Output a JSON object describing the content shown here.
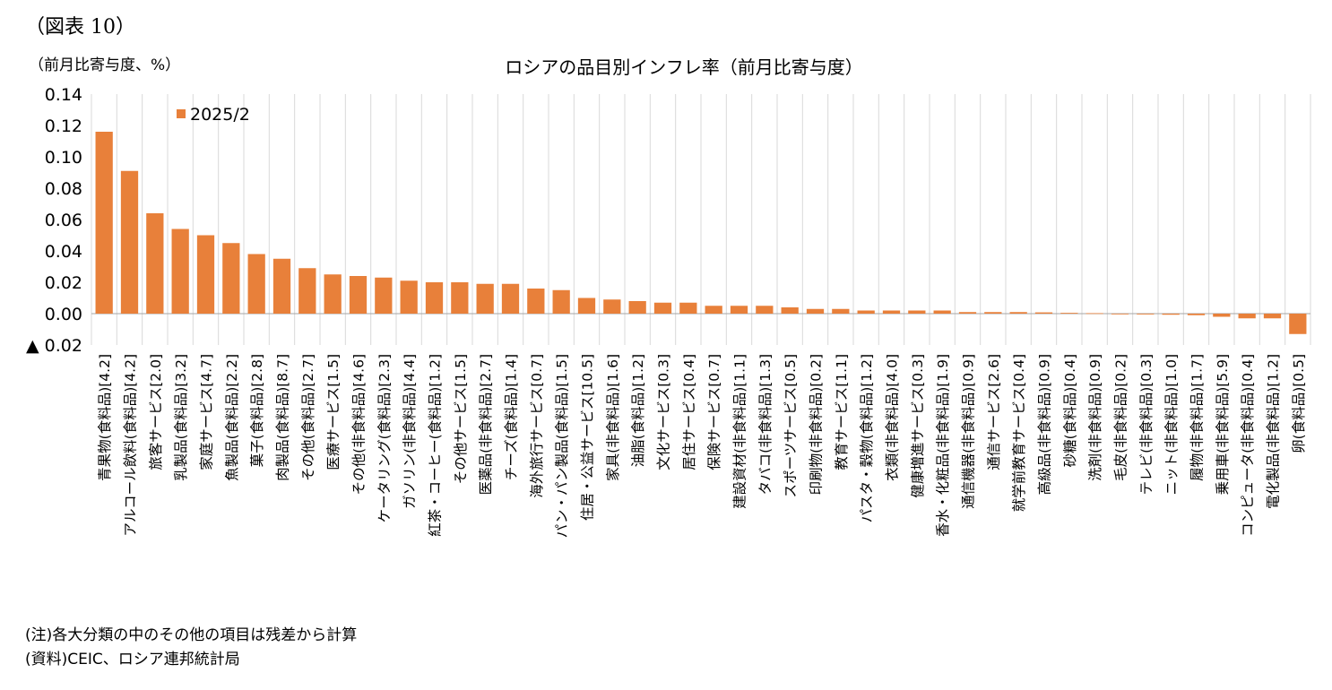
{
  "figure_label": "（図表 10）",
  "unit_label": "（前月比寄与度、%）",
  "notes": {
    "note": "(注)各大分類の中のその他の項目は残差から計算",
    "source": "(資料)CEIC、ロシア連邦統計局"
  },
  "colors": {
    "bar": "#E8803A",
    "grid": "#D9D9D9",
    "axis": "#A6A6A6"
  },
  "chart_data": {
    "type": "bar",
    "title": "ロシアの品目別インフレ率（前月比寄与度）",
    "ylabel": "（前月比寄与度、%）",
    "ylim": [
      -0.02,
      0.14
    ],
    "yticks": [
      {
        "value": 0.14,
        "label": "0.14"
      },
      {
        "value": 0.12,
        "label": "0.12"
      },
      {
        "value": 0.1,
        "label": "0.10"
      },
      {
        "value": 0.08,
        "label": "0.08"
      },
      {
        "value": 0.06,
        "label": "0.06"
      },
      {
        "value": 0.04,
        "label": "0.04"
      },
      {
        "value": 0.02,
        "label": "0.02"
      },
      {
        "value": 0.0,
        "label": "0.00"
      },
      {
        "value": -0.02,
        "label": "▲ 0.02"
      }
    ],
    "legend": "2025/2",
    "legend_position": "top-left",
    "grid": true,
    "categories": [
      "青果物(食料品)[4.2]",
      "アルコール飲料(食料品)[4.2]",
      "旅客サービス[2.0]",
      "乳製品(食料品)[3.2]",
      "家庭サービス[4.7]",
      "魚製品(食料品)[2.2]",
      "菓子(食料品)[2.8]",
      "肉製品(食料品)[8.7]",
      "その他(食料品)[2.7]",
      "医療サービス[1.5]",
      "その他(非食料品)[4.6]",
      "ケータリング(食料品)[2.3]",
      "ガソリン(非食料品)[4.4]",
      "紅茶・コーヒー(食料品)[1.2]",
      "その他サービス[1.5]",
      "医薬品(非食料品)[2.7]",
      "チーズ(食料品)[1.4]",
      "海外旅行サービス[0.7]",
      "パン・パン製品(食料品)[1.5]",
      "住居・公益サービス[10.5]",
      "家具(非食料品)[1.6]",
      "油脂(食料品)[1.2]",
      "文化サービス[0.3]",
      "居住サービス[0.4]",
      "保険サービス[0.7]",
      "建設資材(非食料品)[1.1]",
      "タバコ(非食料品)[1.3]",
      "スポーツサービス[0.5]",
      "印刷物(非食料品)[0.2]",
      "教育サービス[1.1]",
      "パスタ・穀物(食料品)[1.2]",
      "衣類(非食料品)[4.0]",
      "健康増進サービス[0.3]",
      "香水・化粧品(非食料品)[1.9]",
      "通信機器(非食料品)[0.9]",
      "通信サービス[2.6]",
      "就学前教育サービス[0.4]",
      "高級品(非食料品)[0.9]",
      "砂糖(食料品)[0.4]",
      "洗剤(非食料品)[0.9]",
      "毛皮(非食料品)[0.2]",
      "テレビ(非食料品)[0.3]",
      "ニット(非食料品)[1.0]",
      "履物(非食料品)[1.7]",
      "乗用車(非食料品)[5.9]",
      "コンピュータ(非食料品)[0.4]",
      "電化製品(非食料品)[1.2]",
      "卵(食料品)[0.5]"
    ],
    "series": [
      {
        "name": "2025/2",
        "values": [
          0.116,
          0.091,
          0.064,
          0.054,
          0.05,
          0.045,
          0.038,
          0.035,
          0.029,
          0.025,
          0.024,
          0.023,
          0.021,
          0.02,
          0.02,
          0.019,
          0.019,
          0.016,
          0.015,
          0.01,
          0.009,
          0.008,
          0.007,
          0.007,
          0.005,
          0.005,
          0.005,
          0.004,
          0.003,
          0.003,
          0.002,
          0.002,
          0.002,
          0.002,
          0.001,
          0.001,
          0.001,
          0.0008,
          0.0005,
          0.0003,
          -0.0003,
          -0.0005,
          -0.0007,
          -0.001,
          -0.002,
          -0.003,
          -0.003,
          -0.013
        ]
      }
    ]
  }
}
